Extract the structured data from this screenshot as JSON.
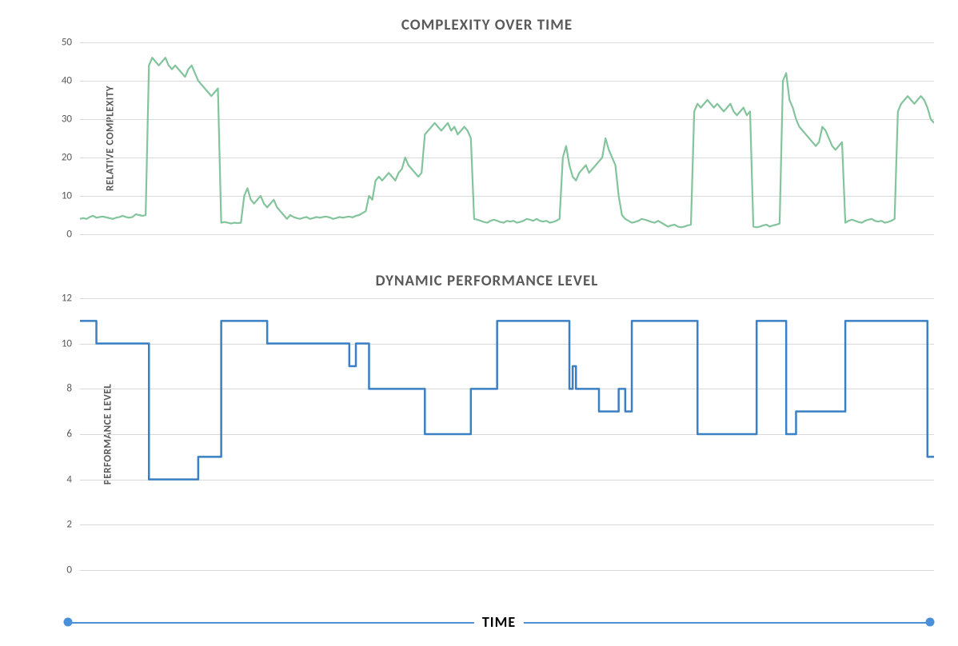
{
  "chart1": {
    "type": "line",
    "title": "COMPLEXITY OVER TIME",
    "title_fontsize": 19,
    "title_color": "#595959",
    "ylabel": "RELATIVE COMPLEXITY",
    "label_fontsize": 13,
    "label_color": "#595959",
    "ylim": [
      0,
      50
    ],
    "ytick_step": 10,
    "yticks": [
      0,
      10,
      20,
      30,
      40,
      50
    ],
    "grid_color": "#d9d9d9",
    "background_color": "#ffffff",
    "line_color": "#84c49c",
    "line_width": 2.2,
    "values": [
      4,
      4.2,
      4,
      4.5,
      4.8,
      4.3,
      4.5,
      4.6,
      4.4,
      4.2,
      4,
      4.3,
      4.5,
      4.8,
      4.5,
      4.3,
      4.5,
      5.2,
      5.0,
      4.8,
      5,
      44,
      46,
      45,
      44,
      45,
      46,
      44,
      43,
      44,
      43,
      42,
      41,
      43,
      44,
      42,
      40,
      39,
      38,
      37,
      36,
      37,
      38,
      3,
      3.2,
      3,
      2.8,
      3,
      2.9,
      3,
      10,
      12,
      9,
      8,
      9,
      10,
      8,
      7,
      8,
      9,
      7,
      6,
      5,
      4,
      5,
      4.5,
      4.2,
      4,
      4.3,
      4.5,
      4,
      4.2,
      4.5,
      4.3,
      4.5,
      4.6,
      4.4,
      4,
      4.2,
      4.5,
      4.3,
      4.5,
      4.6,
      4.4,
      4.8,
      5,
      5.5,
      6,
      10,
      9,
      14,
      15,
      14,
      15,
      16,
      15,
      14,
      16,
      17,
      20,
      18,
      17,
      16,
      15,
      16,
      26,
      27,
      28,
      29,
      28,
      27,
      28,
      29,
      27,
      28,
      26,
      27,
      28,
      27,
      25,
      4,
      3.8,
      3.5,
      3.2,
      3,
      3.5,
      3.8,
      3.5,
      3.2,
      3,
      3.5,
      3.3,
      3.5,
      3,
      3.2,
      3.5,
      4,
      3.8,
      3.5,
      4,
      3.5,
      3.3,
      3.5,
      3,
      3.2,
      3.5,
      4,
      20,
      23,
      18,
      15,
      14,
      16,
      17,
      18,
      16,
      17,
      18,
      19,
      20,
      25,
      22,
      20,
      18,
      10,
      5,
      4,
      3.5,
      3,
      3.2,
      3.5,
      4,
      3.8,
      3.5,
      3.2,
      3,
      3.5,
      3,
      2.5,
      2,
      2.3,
      2.5,
      2,
      1.8,
      2,
      2.3,
      2.5,
      32,
      34,
      33,
      34,
      35,
      34,
      33,
      34,
      33,
      32,
      33,
      34,
      32,
      31,
      32,
      33,
      31,
      32,
      2,
      1.8,
      2,
      2.3,
      2.5,
      2,
      2.3,
      2.5,
      2.8,
      40,
      42,
      35,
      33,
      30,
      28,
      27,
      26,
      25,
      24,
      23,
      24,
      28,
      27,
      25,
      23,
      22,
      23,
      24,
      3,
      3.5,
      3.8,
      3.5,
      3.2,
      3,
      3.5,
      3.8,
      4,
      3.5,
      3.3,
      3.5,
      3,
      3.2,
      3.5,
      4,
      32,
      34,
      35,
      36,
      35,
      34,
      35,
      36,
      35,
      33,
      30,
      29
    ]
  },
  "chart2": {
    "type": "step",
    "title": "DYNAMIC PERFORMANCE LEVEL",
    "title_fontsize": 19,
    "title_color": "#595959",
    "ylabel": "PERFORMANCE LEVEL",
    "label_fontsize": 13,
    "label_color": "#595959",
    "ylim": [
      0,
      12
    ],
    "ytick_step": 2,
    "yticks": [
      0,
      2,
      4,
      6,
      8,
      10,
      12
    ],
    "grid_color": "#d9d9d9",
    "background_color": "#ffffff",
    "line_color": "#3b7fc4",
    "line_width": 2.5,
    "values": [
      11,
      11,
      11,
      11,
      11,
      10,
      10,
      10,
      10,
      10,
      10,
      10,
      10,
      10,
      10,
      10,
      10,
      10,
      10,
      10,
      10,
      4,
      4,
      4,
      4,
      4,
      4,
      4,
      4,
      4,
      4,
      4,
      4,
      4,
      4,
      4,
      5,
      5,
      5,
      5,
      5,
      5,
      5,
      11,
      11,
      11,
      11,
      11,
      11,
      11,
      11,
      11,
      11,
      11,
      11,
      11,
      11,
      10,
      10,
      10,
      10,
      10,
      10,
      10,
      10,
      10,
      10,
      10,
      10,
      10,
      10,
      10,
      10,
      10,
      10,
      10,
      10,
      10,
      10,
      10,
      10,
      10,
      9,
      9,
      10,
      10,
      10,
      10,
      8,
      8,
      8,
      8,
      8,
      8,
      8,
      8,
      8,
      8,
      8,
      8,
      8,
      8,
      8,
      8,
      8,
      6,
      6,
      6,
      6,
      6,
      6,
      6,
      6,
      6,
      6,
      6,
      6,
      6,
      6,
      8,
      8,
      8,
      8,
      8,
      8,
      8,
      8,
      11,
      11,
      11,
      11,
      11,
      11,
      11,
      11,
      11,
      11,
      11,
      11,
      11,
      11,
      11,
      11,
      11,
      11,
      11,
      11,
      11,
      11,
      8,
      9,
      8,
      8,
      8,
      8,
      8,
      8,
      8,
      7,
      7,
      7,
      7,
      7,
      7,
      8,
      8,
      7,
      7,
      11,
      11,
      11,
      11,
      11,
      11,
      11,
      11,
      11,
      11,
      11,
      11,
      11,
      11,
      11,
      11,
      11,
      11,
      11,
      11,
      6,
      6,
      6,
      6,
      6,
      6,
      6,
      6,
      6,
      6,
      6,
      6,
      6,
      6,
      6,
      6,
      6,
      6,
      11,
      11,
      11,
      11,
      11,
      11,
      11,
      11,
      11,
      6,
      6,
      6,
      7,
      7,
      7,
      7,
      7,
      7,
      7,
      7,
      7,
      7,
      7,
      7,
      7,
      7,
      7,
      11,
      11,
      11,
      11,
      11,
      11,
      11,
      11,
      11,
      11,
      11,
      11,
      11,
      11,
      11,
      11,
      11,
      11,
      11,
      11,
      11,
      11,
      11,
      11,
      11,
      5,
      5,
      5
    ]
  },
  "time_axis": {
    "label": "TIME",
    "label_fontsize": 18,
    "label_color": "#000000",
    "line_color": "#4a90d9",
    "dot_color": "#4a90d9"
  }
}
